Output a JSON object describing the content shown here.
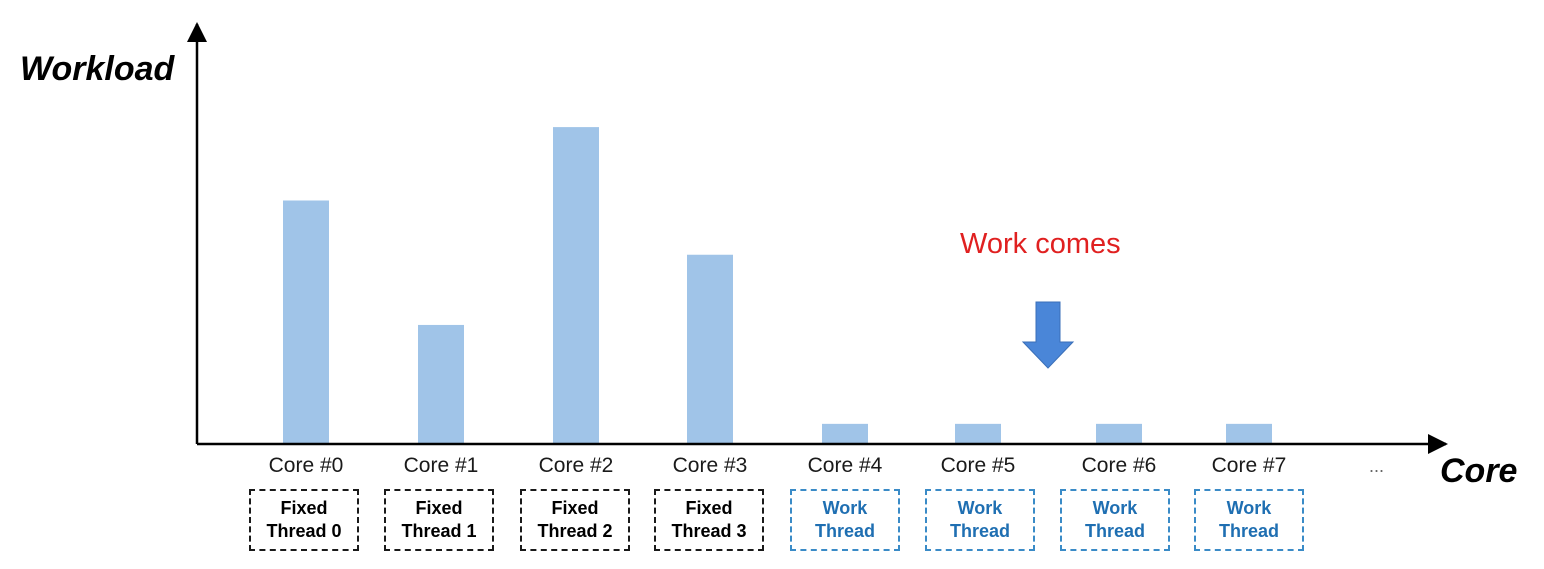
{
  "chart_data": {
    "type": "bar",
    "ylabel": "Workload",
    "xlabel": "Core",
    "categories": [
      "Core #0",
      "Core #1",
      "Core #2",
      "Core #3",
      "Core #4",
      "Core #5",
      "Core #6",
      "Core #7"
    ],
    "series": [
      {
        "values": [
          76,
          37,
          99,
          59,
          6,
          6,
          6,
          6
        ]
      }
    ],
    "ylim": [
      0,
      110
    ],
    "grid": false,
    "bar_color": "#a0c4e8",
    "axis_ellipsis": "...",
    "thread_boxes": [
      {
        "line1": "Fixed",
        "line2": "Thread 0",
        "kind": "fixed"
      },
      {
        "line1": "Fixed",
        "line2": "Thread 1",
        "kind": "fixed"
      },
      {
        "line1": "Fixed",
        "line2": "Thread 2",
        "kind": "fixed"
      },
      {
        "line1": "Fixed",
        "line2": "Thread 3",
        "kind": "fixed"
      },
      {
        "line1": "Work",
        "line2": "Thread",
        "kind": "work"
      },
      {
        "line1": "Work",
        "line2": "Thread",
        "kind": "work"
      },
      {
        "line1": "Work",
        "line2": "Thread",
        "kind": "work"
      },
      {
        "line1": "Work",
        "line2": "Thread",
        "kind": "work"
      }
    ],
    "annotation": {
      "text": "Work comes",
      "color": "#e02020",
      "arrow_color": "#4a86d8"
    }
  }
}
